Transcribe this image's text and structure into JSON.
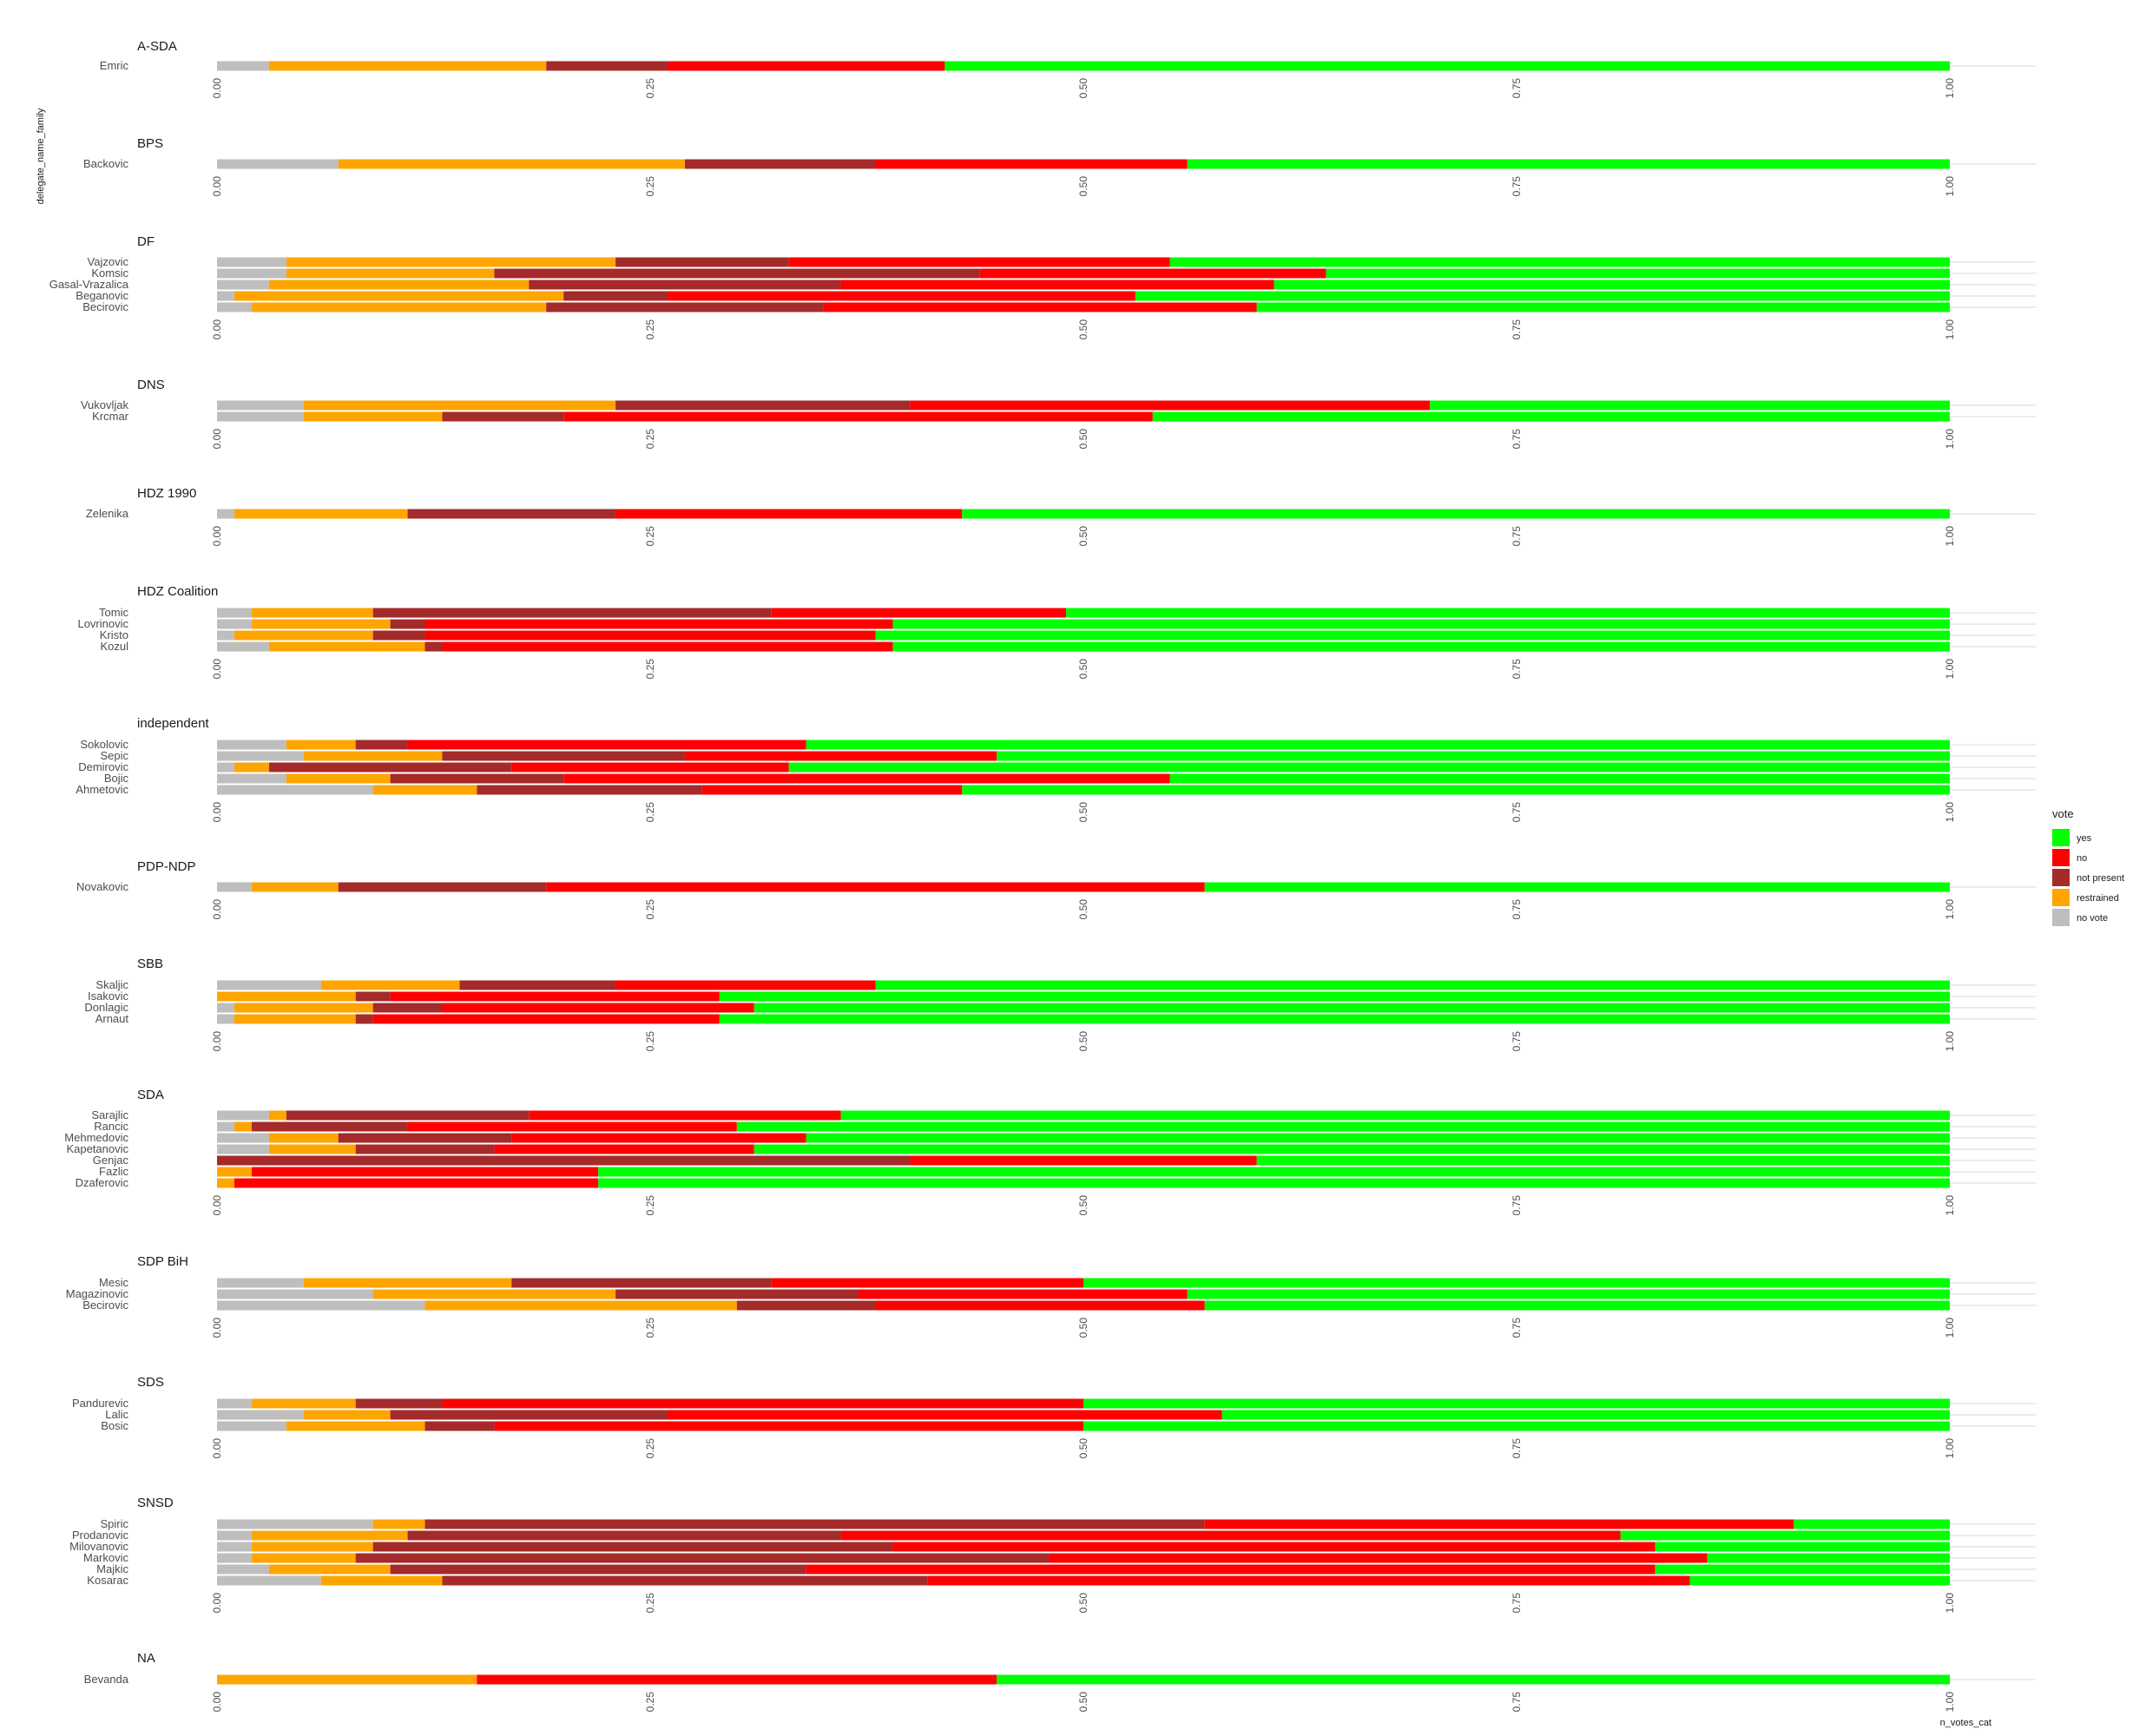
{
  "chart_data": {
    "type": "bar",
    "orientation": "horizontal",
    "stacked": true,
    "xlabel": "n_votes_cat",
    "ylabel": "delegate_name_family",
    "xlim": [
      0,
      1
    ],
    "x_ticks": [
      "0.00",
      "0.25",
      "0.50",
      "0.75",
      "1.00"
    ],
    "legend": {
      "title": "vote",
      "position": "right",
      "entries": [
        {
          "label": "yes",
          "color": "#00FF00"
        },
        {
          "label": "no",
          "color": "#FF0000"
        },
        {
          "label": "not present",
          "color": "#A52A2A"
        },
        {
          "label": "restrained",
          "color": "#FFA500"
        },
        {
          "label": "no vote",
          "color": "#BEBEBE"
        }
      ]
    },
    "stack_order": [
      "no vote",
      "restrained",
      "not present",
      "no",
      "yes"
    ],
    "colors": {
      "no vote": "#BEBEBE",
      "restrained": "#FFA500",
      "not present": "#A52A2A",
      "no": "#FF0000",
      "yes": "#00FF00"
    },
    "panels": [
      {
        "title": "A-SDA",
        "delegates": [
          {
            "name": "Emric",
            "no_vote": 0.03,
            "restrained": 0.16,
            "not_present": 0.07,
            "no": 0.16,
            "yes": 0.58
          }
        ]
      },
      {
        "title": "BPS",
        "delegates": [
          {
            "name": "Backovic",
            "no_vote": 0.07,
            "restrained": 0.2,
            "not_present": 0.11,
            "no": 0.18,
            "yes": 0.44
          }
        ]
      },
      {
        "title": "DF",
        "delegates": [
          {
            "name": "Vajzovic",
            "no_vote": 0.04,
            "restrained": 0.19,
            "not_present": 0.1,
            "no": 0.22,
            "yes": 0.45
          },
          {
            "name": "Komsic",
            "no_vote": 0.04,
            "restrained": 0.12,
            "not_present": 0.28,
            "no": 0.2,
            "yes": 0.36
          },
          {
            "name": "Gasal-Vrazalica",
            "no_vote": 0.03,
            "restrained": 0.15,
            "not_present": 0.18,
            "no": 0.25,
            "yes": 0.39
          },
          {
            "name": "Beganovic",
            "no_vote": 0.01,
            "restrained": 0.19,
            "not_present": 0.06,
            "no": 0.27,
            "yes": 0.47
          },
          {
            "name": "Becirovic",
            "no_vote": 0.02,
            "restrained": 0.17,
            "not_present": 0.16,
            "no": 0.25,
            "yes": 0.4
          }
        ]
      },
      {
        "title": "DNS",
        "delegates": [
          {
            "name": "Vukovljak",
            "no_vote": 0.05,
            "restrained": 0.18,
            "not_present": 0.17,
            "no": 0.3,
            "yes": 0.3
          },
          {
            "name": "Krcmar",
            "no_vote": 0.05,
            "restrained": 0.08,
            "not_present": 0.07,
            "no": 0.34,
            "yes": 0.46
          }
        ]
      },
      {
        "title": "HDZ 1990",
        "delegates": [
          {
            "name": "Zelenika",
            "no_vote": 0.01,
            "restrained": 0.1,
            "not_present": 0.12,
            "no": 0.2,
            "yes": 0.57
          }
        ]
      },
      {
        "title": "HDZ Coalition",
        "delegates": [
          {
            "name": "Tomic",
            "no_vote": 0.02,
            "restrained": 0.07,
            "not_present": 0.23,
            "no": 0.17,
            "yes": 0.51
          },
          {
            "name": "Lovrinovic",
            "no_vote": 0.02,
            "restrained": 0.08,
            "not_present": 0.02,
            "no": 0.27,
            "yes": 0.61
          },
          {
            "name": "Kristo",
            "no_vote": 0.01,
            "restrained": 0.08,
            "not_present": 0.03,
            "no": 0.26,
            "yes": 0.62
          },
          {
            "name": "Kozul",
            "no_vote": 0.03,
            "restrained": 0.09,
            "not_present": 0.01,
            "no": 0.26,
            "yes": 0.61
          }
        ]
      },
      {
        "title": "independent",
        "delegates": [
          {
            "name": "Sokolovic",
            "no_vote": 0.04,
            "restrained": 0.04,
            "not_present": 0.03,
            "no": 0.23,
            "yes": 0.66
          },
          {
            "name": "Sepic",
            "no_vote": 0.05,
            "restrained": 0.08,
            "not_present": 0.14,
            "no": 0.18,
            "yes": 0.55
          },
          {
            "name": "Demirovic",
            "no_vote": 0.01,
            "restrained": 0.02,
            "not_present": 0.14,
            "no": 0.16,
            "yes": 0.67
          },
          {
            "name": "Bojic",
            "no_vote": 0.04,
            "restrained": 0.06,
            "not_present": 0.1,
            "no": 0.35,
            "yes": 0.45
          },
          {
            "name": "Ahmetovic",
            "no_vote": 0.09,
            "restrained": 0.06,
            "not_present": 0.13,
            "no": 0.15,
            "yes": 0.57
          }
        ]
      },
      {
        "title": "PDP-NDP",
        "delegates": [
          {
            "name": "Novakovic",
            "no_vote": 0.02,
            "restrained": 0.05,
            "not_present": 0.12,
            "no": 0.38,
            "yes": 0.43
          }
        ]
      },
      {
        "title": "SBB",
        "delegates": [
          {
            "name": "Skaljic",
            "no_vote": 0.06,
            "restrained": 0.08,
            "not_present": 0.09,
            "no": 0.15,
            "yes": 0.62
          },
          {
            "name": "Isakovic",
            "no_vote": 0.0,
            "restrained": 0.08,
            "not_present": 0.02,
            "no": 0.19,
            "yes": 0.71
          },
          {
            "name": "Donlagic",
            "no_vote": 0.01,
            "restrained": 0.08,
            "not_present": 0.04,
            "no": 0.18,
            "yes": 0.69
          },
          {
            "name": "Arnaut",
            "no_vote": 0.01,
            "restrained": 0.07,
            "not_present": 0.01,
            "no": 0.2,
            "yes": 0.71
          }
        ]
      },
      {
        "title": "SDA",
        "delegates": [
          {
            "name": "Sarajlic",
            "no_vote": 0.03,
            "restrained": 0.01,
            "not_present": 0.14,
            "no": 0.18,
            "yes": 0.64
          },
          {
            "name": "Rancic",
            "no_vote": 0.01,
            "restrained": 0.01,
            "not_present": 0.09,
            "no": 0.19,
            "yes": 0.7
          },
          {
            "name": "Mehmedovic",
            "no_vote": 0.03,
            "restrained": 0.04,
            "not_present": 0.1,
            "no": 0.17,
            "yes": 0.66
          },
          {
            "name": "Kapetanovic",
            "no_vote": 0.03,
            "restrained": 0.05,
            "not_present": 0.08,
            "no": 0.15,
            "yes": 0.69
          },
          {
            "name": "Genjac",
            "no_vote": 0.0,
            "restrained": 0.0,
            "not_present": 0.4,
            "no": 0.2,
            "yes": 0.4
          },
          {
            "name": "Fazlic",
            "no_vote": 0.0,
            "restrained": 0.02,
            "not_present": 0.0,
            "no": 0.2,
            "yes": 0.78
          },
          {
            "name": "Dzaferovic",
            "no_vote": 0.0,
            "restrained": 0.01,
            "not_present": 0.0,
            "no": 0.21,
            "yes": 0.78
          }
        ]
      },
      {
        "title": "SDP BiH",
        "delegates": [
          {
            "name": "Mesic",
            "no_vote": 0.05,
            "restrained": 0.12,
            "not_present": 0.15,
            "no": 0.18,
            "yes": 0.5
          },
          {
            "name": "Magazinovic",
            "no_vote": 0.09,
            "restrained": 0.14,
            "not_present": 0.14,
            "no": 0.19,
            "yes": 0.44
          },
          {
            "name": "Becirovic",
            "no_vote": 0.12,
            "restrained": 0.18,
            "not_present": 0.08,
            "no": 0.19,
            "yes": 0.43
          }
        ]
      },
      {
        "title": "SDS",
        "delegates": [
          {
            "name": "Pandurevic",
            "no_vote": 0.02,
            "restrained": 0.06,
            "not_present": 0.05,
            "no": 0.37,
            "yes": 0.5
          },
          {
            "name": "Lalic",
            "no_vote": 0.05,
            "restrained": 0.05,
            "not_present": 0.16,
            "no": 0.32,
            "yes": 0.42
          },
          {
            "name": "Bosic",
            "no_vote": 0.04,
            "restrained": 0.08,
            "not_present": 0.04,
            "no": 0.34,
            "yes": 0.5
          }
        ]
      },
      {
        "title": "SNSD",
        "delegates": [
          {
            "name": "Spiric",
            "no_vote": 0.09,
            "restrained": 0.03,
            "not_present": 0.45,
            "no": 0.34,
            "yes": 0.09
          },
          {
            "name": "Prodanovic",
            "no_vote": 0.02,
            "restrained": 0.09,
            "not_present": 0.25,
            "no": 0.45,
            "yes": 0.19
          },
          {
            "name": "Milovanovic",
            "no_vote": 0.02,
            "restrained": 0.07,
            "not_present": 0.3,
            "no": 0.44,
            "yes": 0.17
          },
          {
            "name": "Markovic",
            "no_vote": 0.02,
            "restrained": 0.06,
            "not_present": 0.4,
            "no": 0.38,
            "yes": 0.14
          },
          {
            "name": "Majkic",
            "no_vote": 0.03,
            "restrained": 0.07,
            "not_present": 0.24,
            "no": 0.49,
            "yes": 0.17
          },
          {
            "name": "Kosarac",
            "no_vote": 0.06,
            "restrained": 0.07,
            "not_present": 0.28,
            "no": 0.44,
            "yes": 0.15
          }
        ]
      },
      {
        "title": "NA",
        "delegates": [
          {
            "name": "Bevanda",
            "no_vote": 0.0,
            "restrained": 0.15,
            "not_present": 0.0,
            "no": 0.3,
            "yes": 0.55
          }
        ]
      }
    ]
  }
}
